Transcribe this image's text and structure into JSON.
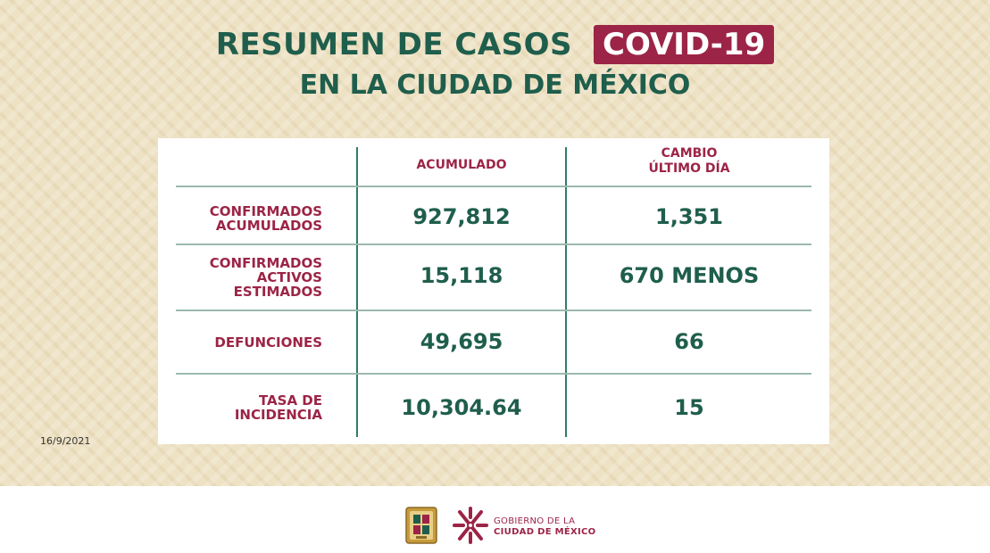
{
  "header": {
    "title": "RESUMEN DE CASOS",
    "badge": "COVID-19",
    "subtitle": "EN LA CIUDAD DE MÉXICO"
  },
  "table": {
    "columns": [
      "ACUMULADO",
      "CAMBIO\nÚLTIMO DÍA"
    ],
    "rows": [
      {
        "label": "CONFIRMADOS\nACUMULADOS",
        "acumulado": "927,812",
        "cambio": "1,351"
      },
      {
        "label": "CONFIRMADOS\nACTIVOS\nESTIMADOS",
        "acumulado": "15,118",
        "cambio": "670 MENOS"
      },
      {
        "label": "DEFUNCIONES",
        "acumulado": "49,695",
        "cambio": "66"
      },
      {
        "label": "TASA DE\nINCIDENCIA",
        "acumulado": "10,304.64",
        "cambio": "15"
      }
    ]
  },
  "date": "16/9/2021",
  "footer": {
    "gov_line1": "GOBIERNO DE LA",
    "gov_line2": "CIUDAD DE MÉXICO"
  },
  "colors": {
    "green": "#1f5e4c",
    "maroon": "#9c2447",
    "background": "#eee2c4"
  },
  "icons": [
    "coat-of-arms-shield-icon",
    "cdmx-logo-icon"
  ]
}
